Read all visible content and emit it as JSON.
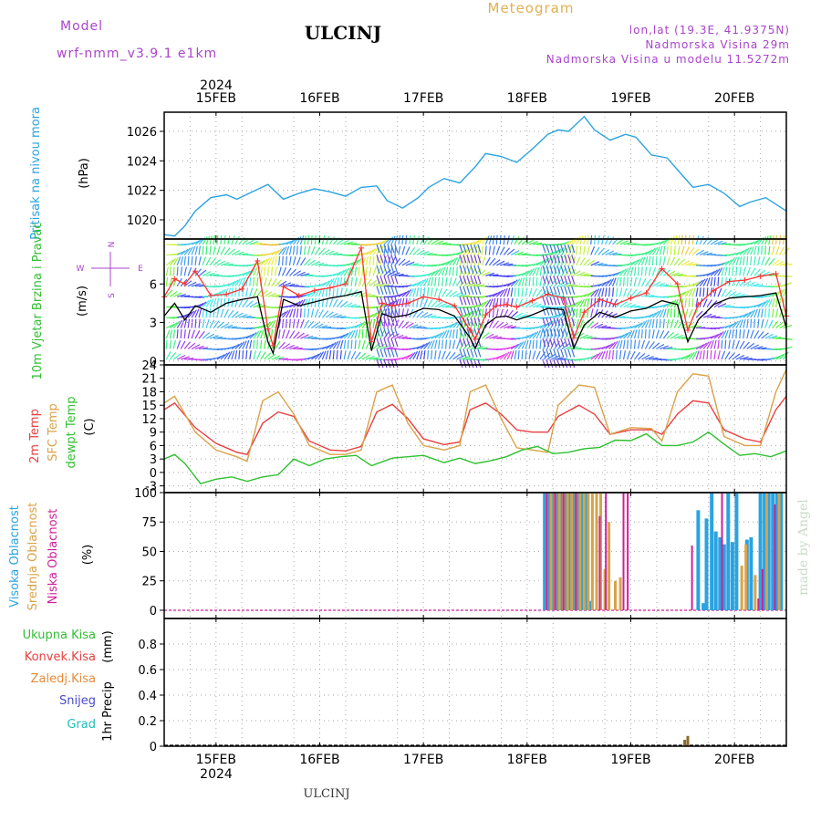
{
  "header": {
    "model_label": "Model",
    "model_name": "wrf-nmm_v3.9.1  e1km",
    "station": "ULCINJ",
    "product": "Meteogram",
    "coords": "lon,lat (19.3E, 41.9375N)",
    "altitude": "Nadmorska Visina 29m",
    "model_altitude": "Nadmorska Visina u modelu 11.5272m"
  },
  "footer": {
    "station": "ULCINJ",
    "credit": "made by Angel"
  },
  "time_axis": {
    "year": "2024",
    "day_labels": [
      "15FEB",
      "16FEB",
      "17FEB",
      "18FEB",
      "19FEB",
      "20FEB"
    ],
    "x_range_days": [
      14.5,
      20.5
    ]
  },
  "colors": {
    "pressure": "#2aa3e0",
    "wind_mean": "#000000",
    "wind_gust": "#ff3333",
    "t2m": "#e84040",
    "tsfc": "#d9a24a",
    "dewpt": "#2fbf2f",
    "cloud_high": "#2aa3e0",
    "cloud_mid": "#d9a24a",
    "cloud_low": "#cc2299",
    "precip": "#8a6a2a",
    "legend_total": "#2fbf2f",
    "legend_conv": "#e84040",
    "legend_frozen": "#e88a3a",
    "legend_snow": "#4a4acc",
    "legend_hail": "#22bbbb",
    "header_purple": "#aa44cc",
    "header_gold": "#e0b050"
  },
  "chart_data": [
    {
      "type": "line",
      "panel": "pressure",
      "ylabel": "Pritisak na nivou mora",
      "unit": "(hPa)",
      "ylim": [
        1018.7,
        1027.3
      ],
      "yticks": [
        1020,
        1022,
        1024,
        1026
      ],
      "grid": true,
      "series": [
        {
          "x": [
            14.5,
            14.6,
            14.7,
            14.8,
            14.95,
            15.1,
            15.2,
            15.35,
            15.5,
            15.65,
            15.8,
            15.95,
            16.1,
            16.25,
            16.4,
            16.55,
            16.65,
            16.8,
            16.95,
            17.05,
            17.2,
            17.35,
            17.5,
            17.6,
            17.75,
            17.9,
            18.05,
            18.2,
            18.3,
            18.4,
            18.55,
            18.65,
            18.8,
            18.95,
            19.05,
            19.2,
            19.35,
            19.5,
            19.6,
            19.75,
            19.9,
            20.05,
            20.15,
            20.3,
            20.5
          ],
          "y": [
            1019.0,
            1018.9,
            1019.6,
            1020.6,
            1021.5,
            1021.7,
            1021.4,
            1021.9,
            1022.4,
            1021.4,
            1021.8,
            1022.1,
            1021.9,
            1021.6,
            1022.2,
            1022.3,
            1021.3,
            1020.8,
            1021.5,
            1022.2,
            1022.8,
            1022.5,
            1023.6,
            1024.5,
            1024.3,
            1023.9,
            1024.8,
            1025.8,
            1026.1,
            1026.0,
            1027.0,
            1026.1,
            1025.4,
            1025.8,
            1025.6,
            1024.4,
            1024.2,
            1023.0,
            1022.2,
            1022.4,
            1021.8,
            1020.9,
            1021.2,
            1021.5,
            1020.6
          ]
        }
      ]
    },
    {
      "type": "line",
      "panel": "wind",
      "ylabel": "10m Vjetar Brzina i Pravac",
      "unit": "(m/s)",
      "ylim": [
        -0.3,
        9.5
      ],
      "yticks": [
        0,
        3,
        6
      ],
      "compass": [
        "N",
        "W",
        "E",
        "S"
      ],
      "grid": true,
      "series": [
        {
          "role": "mean",
          "x": [
            14.5,
            14.6,
            14.7,
            14.8,
            14.95,
            15.1,
            15.25,
            15.4,
            15.5,
            15.55,
            15.65,
            15.8,
            15.95,
            16.1,
            16.25,
            16.4,
            16.5,
            16.6,
            16.7,
            16.85,
            17.0,
            17.15,
            17.3,
            17.45,
            17.5,
            17.6,
            17.7,
            17.8,
            17.9,
            18.05,
            18.2,
            18.35,
            18.45,
            18.55,
            18.7,
            18.85,
            19.0,
            19.15,
            19.3,
            19.45,
            19.55,
            19.65,
            19.8,
            19.95,
            20.1,
            20.25,
            20.4,
            20.5
          ],
          "y": [
            3.5,
            4.5,
            3.2,
            4.3,
            3.8,
            4.5,
            4.8,
            5.0,
            1.5,
            0.6,
            4.8,
            4.3,
            4.6,
            4.9,
            5.1,
            5.4,
            0.8,
            3.7,
            3.4,
            3.6,
            4.1,
            4.0,
            3.5,
            1.8,
            1.0,
            2.8,
            3.4,
            3.5,
            3.2,
            3.6,
            4.1,
            4.0,
            1.0,
            2.8,
            3.8,
            3.4,
            3.9,
            4.1,
            4.7,
            4.4,
            1.5,
            3.2,
            4.4,
            4.9,
            5.0,
            5.1,
            5.3,
            2.6
          ]
        },
        {
          "role": "gust",
          "x": [
            14.5,
            14.6,
            14.7,
            14.8,
            14.95,
            15.1,
            15.25,
            15.4,
            15.5,
            15.55,
            15.65,
            15.8,
            15.95,
            16.1,
            16.25,
            16.4,
            16.5,
            16.6,
            16.7,
            16.85,
            17.0,
            17.15,
            17.3,
            17.45,
            17.5,
            17.6,
            17.7,
            17.8,
            17.9,
            18.05,
            18.2,
            18.35,
            18.45,
            18.55,
            18.7,
            18.85,
            19.0,
            19.15,
            19.3,
            19.45,
            19.55,
            19.65,
            19.8,
            19.95,
            20.1,
            20.25,
            20.4,
            20.5
          ],
          "y": [
            5.0,
            6.4,
            6.0,
            7.0,
            5.1,
            5.2,
            5.6,
            7.8,
            2.5,
            1.2,
            5.8,
            5.1,
            5.5,
            5.7,
            6.0,
            8.8,
            1.5,
            4.5,
            4.3,
            4.5,
            5.0,
            4.8,
            4.3,
            2.4,
            1.7,
            3.6,
            4.3,
            4.4,
            4.2,
            4.7,
            5.2,
            4.9,
            1.8,
            3.8,
            4.8,
            4.4,
            4.9,
            5.3,
            7.2,
            6.0,
            2.4,
            4.4,
            5.5,
            6.2,
            6.3,
            6.6,
            6.8,
            3.5
          ]
        }
      ]
    },
    {
      "type": "line",
      "panel": "temperature",
      "ylabel": "2m Temp / SFC Temp / dewpt Temp",
      "unit": "(C)",
      "ylim": [
        -4.5,
        24
      ],
      "yticks": [
        -3,
        0,
        3,
        6,
        9,
        12,
        15,
        18,
        21,
        24
      ],
      "grid": true,
      "series": [
        {
          "name": "2m Temp",
          "x": [
            14.5,
            14.6,
            14.8,
            15.0,
            15.2,
            15.3,
            15.45,
            15.6,
            15.75,
            15.9,
            16.1,
            16.25,
            16.4,
            16.55,
            16.7,
            16.85,
            17.0,
            17.2,
            17.35,
            17.45,
            17.6,
            17.75,
            17.9,
            18.05,
            18.2,
            18.3,
            18.5,
            18.65,
            18.8,
            19.0,
            19.2,
            19.3,
            19.45,
            19.6,
            19.75,
            19.9,
            20.1,
            20.25,
            20.4,
            20.5
          ],
          "y": [
            14,
            15.5,
            10,
            6.5,
            4.5,
            4,
            11,
            13.5,
            12.5,
            7,
            5,
            4.8,
            5.8,
            13.5,
            15.2,
            12,
            7.5,
            6.2,
            6.8,
            14,
            15.5,
            13,
            9.5,
            9,
            9,
            12.5,
            15,
            13,
            8.5,
            9.5,
            9.5,
            8.5,
            13,
            16,
            15.5,
            9.5,
            7.5,
            6.8,
            14,
            17
          ]
        },
        {
          "name": "SFC Temp",
          "x": [
            14.5,
            14.6,
            14.8,
            15.0,
            15.2,
            15.3,
            15.45,
            15.6,
            15.75,
            15.9,
            16.1,
            16.25,
            16.4,
            16.55,
            16.7,
            16.85,
            17.0,
            17.2,
            17.35,
            17.45,
            17.6,
            17.75,
            17.9,
            18.05,
            18.2,
            18.3,
            18.5,
            18.65,
            18.8,
            19.0,
            19.2,
            19.3,
            19.45,
            19.6,
            19.75,
            19.9,
            20.1,
            20.25,
            20.4,
            20.5
          ],
          "y": [
            15.5,
            17,
            9,
            5,
            3.5,
            2.5,
            16,
            18,
            13,
            6,
            4,
            4,
            5,
            18,
            19.5,
            11,
            6,
            5,
            6,
            18,
            19.5,
            12,
            5.5,
            5,
            4.5,
            15,
            19.5,
            19,
            8.5,
            10,
            9.8,
            7,
            18,
            22,
            21.5,
            8,
            6,
            6,
            18,
            23
          ]
        },
        {
          "name": "dewpt Temp",
          "x": [
            14.5,
            14.6,
            14.7,
            14.85,
            15.0,
            15.15,
            15.3,
            15.45,
            15.6,
            15.75,
            15.9,
            16.05,
            16.2,
            16.35,
            16.5,
            16.7,
            16.85,
            17.0,
            17.2,
            17.35,
            17.5,
            17.65,
            17.8,
            17.95,
            18.1,
            18.25,
            18.4,
            18.55,
            18.7,
            18.85,
            19.0,
            19.15,
            19.3,
            19.45,
            19.6,
            19.75,
            19.9,
            20.05,
            20.2,
            20.35,
            20.5
          ],
          "y": [
            3,
            4,
            2,
            -2.5,
            -1.5,
            -1,
            -2,
            -1,
            -0.5,
            3,
            1.5,
            3,
            3.5,
            3.8,
            1.5,
            3.2,
            3.5,
            3.8,
            2.2,
            3.2,
            2,
            2.6,
            3.5,
            5,
            5.8,
            4.2,
            4.5,
            5.3,
            5.6,
            7.2,
            7.1,
            8.6,
            6,
            6,
            6.8,
            9,
            6.3,
            3.8,
            4.2,
            3.5,
            4.8
          ]
        }
      ]
    },
    {
      "type": "bar",
      "panel": "cloud",
      "ylabel": "Visoka Oblacnost / Srednja Oblacnost / Niska Oblacnost",
      "unit": "(%)",
      "ylim": [
        -7,
        100
      ],
      "yticks": [
        0,
        25,
        50,
        75,
        100
      ],
      "grid": true,
      "series": [
        {
          "name": "Visoka Oblacnost",
          "x": [
            18.17,
            18.21,
            18.25,
            18.29,
            18.33,
            18.37,
            18.41,
            18.45,
            18.49,
            18.53,
            18.57,
            18.61,
            19.65,
            19.7,
            19.73,
            19.78,
            19.82,
            19.86,
            19.9,
            19.94,
            19.98,
            20.02,
            20.12,
            20.16,
            20.25,
            20.29,
            20.33,
            20.37,
            20.41,
            20.45
          ],
          "y": [
            100,
            100,
            100,
            100,
            100,
            100,
            100,
            100,
            100,
            100,
            100,
            8,
            85,
            6,
            78,
            100,
            67,
            62,
            56,
            100,
            58,
            100,
            60,
            62,
            100,
            100,
            100,
            100,
            100,
            100
          ]
        },
        {
          "name": "Srednja Oblacnost",
          "x": [
            18.19,
            18.23,
            18.27,
            18.31,
            18.35,
            18.39,
            18.43,
            18.47,
            18.51,
            18.55,
            18.59,
            18.63,
            18.67,
            18.71,
            18.75,
            18.79,
            18.85,
            18.9,
            20.07,
            20.11,
            20.2,
            20.31,
            20.43
          ],
          "y": [
            100,
            100,
            100,
            100,
            100,
            100,
            100,
            100,
            100,
            100,
            100,
            100,
            100,
            100,
            35,
            75,
            25,
            28,
            38,
            56,
            30,
            100,
            100
          ]
        },
        {
          "name": "Niska Oblacnost",
          "x": [
            18.19,
            18.27,
            18.35,
            18.47,
            18.7,
            18.76,
            18.93,
            18.97,
            19.59,
            19.88,
            20.23,
            20.27,
            20.39
          ],
          "y": [
            100,
            100,
            100,
            100,
            80,
            100,
            100,
            100,
            55,
            100,
            10,
            35,
            90
          ]
        }
      ]
    },
    {
      "type": "bar",
      "panel": "precip",
      "ylabel": "1hr Precip",
      "unit": "(mm)",
      "ylim": [
        0,
        1.0
      ],
      "yticks": [
        0,
        0.2,
        0.4,
        0.6,
        0.8
      ],
      "legend": [
        "Ukupna Kisa",
        "Konvek.Kisa",
        "Zaledj.Kisa",
        "Snijeg",
        "Grad"
      ],
      "grid": true,
      "series": [
        {
          "name": "Ukupna Kisa",
          "x": [
            19.52,
            19.55
          ],
          "y": [
            0.05,
            0.08
          ]
        }
      ]
    }
  ]
}
